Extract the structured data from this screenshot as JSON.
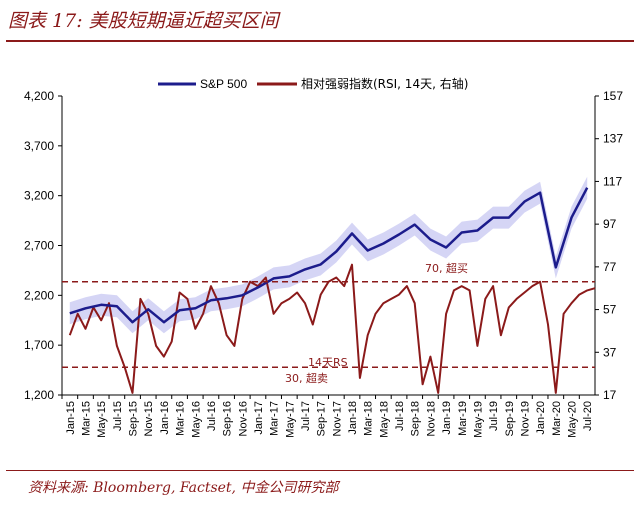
{
  "figure": {
    "title": "图表 17: 美股短期逼近超买区间",
    "source": "资料来源: Bloomberg, Factset, 中金公司研究部"
  },
  "chart_data": {
    "type": "line",
    "legend": [
      "S&P 500",
      "相对强弱指数(RSI, 14天, 右轴)"
    ],
    "legend_position": "top",
    "x_tick_labels": [
      "Jan-15",
      "Mar-15",
      "May-15",
      "Jul-15",
      "Sep-15",
      "Nov-15",
      "Jan-16",
      "Mar-16",
      "May-16",
      "Jul-16",
      "Sep-16",
      "Nov-16",
      "Jan-17",
      "Mar-17",
      "May-17",
      "Jul-17",
      "Sep-17",
      "Nov-17",
      "Jan-18",
      "Mar-18",
      "May-18",
      "Jul-18",
      "Sep-18",
      "Nov-18",
      "Jan-19",
      "Mar-19",
      "May-19",
      "Jul-19",
      "Sep-19",
      "Nov-19",
      "Jan-20",
      "Mar-20",
      "May-20",
      "Jul-20"
    ],
    "y_left": {
      "ticks": [
        "4,200",
        "3,700",
        "3,200",
        "2,700",
        "2,200",
        "1,700",
        "1,200"
      ],
      "range": [
        1200,
        4200
      ]
    },
    "y_right": {
      "ticks": [
        "157",
        "137",
        "117",
        "97",
        "77",
        "57",
        "37",
        "17"
      ],
      "range": [
        17,
        157
      ]
    },
    "grid": false,
    "series": [
      {
        "name": "S&P 500",
        "axis": "left",
        "color": "#1c1c8c",
        "x": [
          "Jan-15",
          "Mar-15",
          "May-15",
          "Jul-15",
          "Sep-15",
          "Nov-15",
          "Jan-16",
          "Mar-16",
          "May-16",
          "Jul-16",
          "Sep-16",
          "Nov-16",
          "Jan-17",
          "Mar-17",
          "May-17",
          "Jul-17",
          "Sep-17",
          "Nov-17",
          "Jan-18",
          "Mar-18",
          "May-18",
          "Jul-18",
          "Sep-18",
          "Nov-18",
          "Jan-19",
          "Mar-19",
          "May-19",
          "Jul-19",
          "Sep-19",
          "Nov-19",
          "Jan-20",
          "Mar-20",
          "May-20",
          "Jul-20"
        ],
        "values": [
          2020,
          2070,
          2105,
          2090,
          1930,
          2060,
          1930,
          2050,
          2070,
          2150,
          2170,
          2200,
          2280,
          2370,
          2390,
          2460,
          2510,
          2640,
          2820,
          2650,
          2720,
          2810,
          2910,
          2760,
          2680,
          2830,
          2850,
          2980,
          2980,
          3140,
          3230,
          2480,
          2980,
          3280
        ]
      },
      {
        "name": "相对强弱指数(RSI, 14天, 右轴)",
        "axis": "right",
        "color": "#8b1a1a",
        "x": [
          "Jan-15",
          "Feb-15",
          "Mar-15",
          "Apr-15",
          "May-15",
          "Jun-15",
          "Jul-15",
          "Aug-15",
          "Sep-15",
          "Oct-15",
          "Nov-15",
          "Dec-15",
          "Jan-16",
          "Feb-16",
          "Mar-16",
          "Apr-16",
          "May-16",
          "Jun-16",
          "Jul-16",
          "Aug-16",
          "Sep-16",
          "Oct-16",
          "Nov-16",
          "Dec-16",
          "Jan-17",
          "Feb-17",
          "Mar-17",
          "Apr-17",
          "May-17",
          "Jun-17",
          "Jul-17",
          "Aug-17",
          "Sep-17",
          "Oct-17",
          "Nov-17",
          "Dec-17",
          "Jan-18",
          "Feb-18",
          "Mar-18",
          "Apr-18",
          "May-18",
          "Jun-18",
          "Jul-18",
          "Aug-18",
          "Sep-18",
          "Oct-18",
          "Nov-18",
          "Dec-18",
          "Jan-19",
          "Feb-19",
          "Mar-19",
          "Apr-19",
          "May-19",
          "Jun-19",
          "Jul-19",
          "Aug-19",
          "Sep-19",
          "Oct-19",
          "Nov-19",
          "Dec-19",
          "Jan-20",
          "Feb-20",
          "Mar-20",
          "Apr-20",
          "May-20",
          "Jun-20",
          "Jul-20",
          "Aug-20"
        ],
        "values": [
          45,
          55,
          48,
          58,
          52,
          60,
          40,
          30,
          18,
          62,
          55,
          40,
          35,
          42,
          65,
          62,
          48,
          55,
          68,
          60,
          45,
          40,
          62,
          70,
          68,
          72,
          55,
          60,
          62,
          65,
          60,
          50,
          64,
          70,
          72,
          68,
          78,
          25,
          45,
          55,
          60,
          62,
          64,
          68,
          60,
          22,
          35,
          18,
          55,
          66,
          68,
          66,
          40,
          62,
          68,
          45,
          58,
          62,
          65,
          68,
          70,
          50,
          18,
          55,
          60,
          64,
          66,
          67
        ]
      }
    ],
    "reference_lines": [
      {
        "axis": "right",
        "value": 70,
        "label": "70, 超买"
      },
      {
        "axis": "right",
        "value": 30,
        "label": "30, 超卖"
      }
    ],
    "annotations": [
      "14天RS"
    ]
  }
}
